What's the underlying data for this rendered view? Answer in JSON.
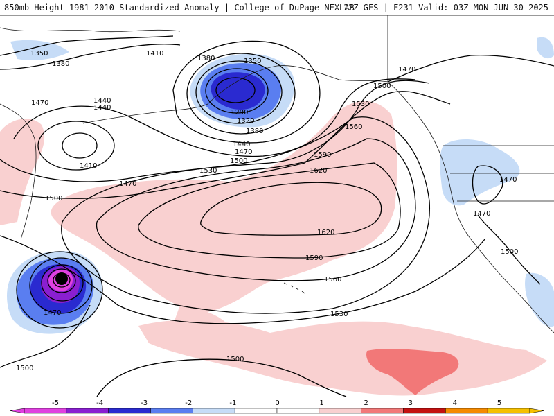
{
  "header": {
    "title_left": "850mb Height 1981-2010 Standardized Anomaly | College of DuPage NEXLAB",
    "title_right": "12Z GFS | F231 Valid: 03Z MON JUN 30 2025"
  },
  "colors": {
    "anom_neg5": "#e040e0",
    "anom_neg4": "#8a1fd1",
    "anom_neg3": "#2a2ad0",
    "anom_neg2": "#5a7ef0",
    "anom_neg1": "#c6dcf7",
    "anom_pos1": "#f9d0d0",
    "anom_pos2": "#f27878",
    "anom_pos3": "#c41010",
    "anom_pos4": "#f58a00",
    "anom_pos5": "#f5c000",
    "contour": "#000000",
    "land_outline": "#1a1a1a"
  },
  "contour_labels": [
    {
      "id": "l1350a",
      "text": "1350"
    },
    {
      "id": "l1380a",
      "text": "1380"
    },
    {
      "id": "l1410a",
      "text": "1410"
    },
    {
      "id": "l1380b",
      "text": "1380"
    },
    {
      "id": "l1350b",
      "text": "1350"
    },
    {
      "id": "l1470a",
      "text": "1470"
    },
    {
      "id": "l1440a",
      "text": "1440"
    },
    {
      "id": "l1440b",
      "text": "1440"
    },
    {
      "id": "l1410b",
      "text": "1410"
    },
    {
      "id": "l1470b",
      "text": "1470"
    },
    {
      "id": "l1500a",
      "text": "1500"
    },
    {
      "id": "l1290",
      "text": "1290"
    },
    {
      "id": "l1320",
      "text": "1320"
    },
    {
      "id": "l1380c",
      "text": "1380"
    },
    {
      "id": "l1440c",
      "text": "1440"
    },
    {
      "id": "l1470c",
      "text": "1470"
    },
    {
      "id": "l1500b",
      "text": "1500"
    },
    {
      "id": "l1530a",
      "text": "1530"
    },
    {
      "id": "l1470d",
      "text": "1470"
    },
    {
      "id": "l1500c",
      "text": "1500"
    },
    {
      "id": "l1530b",
      "text": "1530"
    },
    {
      "id": "l1560a",
      "text": "1560"
    },
    {
      "id": "l1590a",
      "text": "1590"
    },
    {
      "id": "l1620a",
      "text": "1620"
    },
    {
      "id": "l1620b",
      "text": "1620"
    },
    {
      "id": "l1590b",
      "text": "1590"
    },
    {
      "id": "l1560b",
      "text": "1560"
    },
    {
      "id": "l1530c",
      "text": "1530"
    },
    {
      "id": "l1470e",
      "text": "1470"
    },
    {
      "id": "l1470f",
      "text": "1470"
    },
    {
      "id": "l1500d",
      "text": "1500"
    },
    {
      "id": "l1470g",
      "text": "1470"
    },
    {
      "id": "l1500e",
      "text": "1500"
    },
    {
      "id": "l1500f",
      "text": "1500"
    }
  ],
  "legend": {
    "ticks": [
      "-5",
      "-4",
      "-3",
      "-2",
      "-1",
      "0",
      "1",
      "2",
      "3",
      "4",
      "5"
    ]
  }
}
